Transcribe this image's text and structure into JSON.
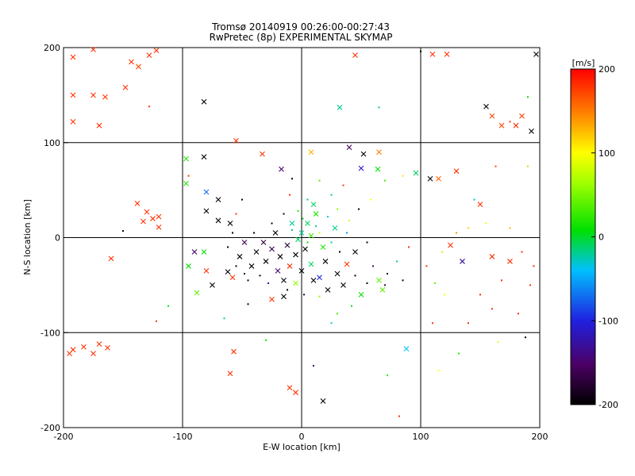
{
  "chart_data": {
    "type": "scatter",
    "title": "Tromsø 20140919 00:26:00-00:27:43",
    "subtitle": "RwPretec (8p) EXPERIMENTAL SKYMAP",
    "xlabel": "E-W location [km]",
    "ylabel": "N-S location [km]",
    "xlim": [
      -200,
      200
    ],
    "ylim": [
      -200,
      200
    ],
    "x_ticks": [
      "-200",
      "-100",
      "0",
      "100",
      "200"
    ],
    "y_ticks": [
      "-200",
      "-100",
      "0",
      "100",
      "200"
    ],
    "grid": "on",
    "grid_values": [
      -100,
      0,
      100
    ],
    "colorbar": {
      "label": "[m/s]",
      "range": [
        -200,
        200
      ],
      "ticks": [
        "200",
        "100",
        "0",
        "-100",
        "-200"
      ],
      "colormap": "rainbow (black-purple-blue-cyan-green-yellow-orange-red)"
    },
    "marker_types": [
      "x",
      "dot"
    ],
    "points": [
      {
        "x": -192,
        "y": 190,
        "v": 180,
        "m": "x"
      },
      {
        "x": -175,
        "y": 198,
        "v": 180,
        "m": "x"
      },
      {
        "x": -143,
        "y": 185,
        "v": 180,
        "m": "x"
      },
      {
        "x": -137,
        "y": 180,
        "v": 170,
        "m": "x"
      },
      {
        "x": -128,
        "y": 192,
        "v": 180,
        "m": "x"
      },
      {
        "x": -122,
        "y": 197,
        "v": 180,
        "m": "x"
      },
      {
        "x": -192,
        "y": 150,
        "v": 180,
        "m": "x"
      },
      {
        "x": -175,
        "y": 150,
        "v": 180,
        "m": "x"
      },
      {
        "x": -165,
        "y": 148,
        "v": 180,
        "m": "x"
      },
      {
        "x": -148,
        "y": 158,
        "v": 180,
        "m": "x"
      },
      {
        "x": -192,
        "y": 122,
        "v": 180,
        "m": "x"
      },
      {
        "x": -170,
        "y": 118,
        "v": 180,
        "m": "x"
      },
      {
        "x": -128,
        "y": 138,
        "v": 180,
        "m": "dot"
      },
      {
        "x": -82,
        "y": 143,
        "v": -200,
        "m": "x"
      },
      {
        "x": 45,
        "y": 192,
        "v": 180,
        "m": "x"
      },
      {
        "x": 110,
        "y": 193,
        "v": 180,
        "m": "x"
      },
      {
        "x": 122,
        "y": 193,
        "v": 180,
        "m": "x"
      },
      {
        "x": 100,
        "y": 196,
        "v": -200,
        "m": "dot"
      },
      {
        "x": 197,
        "y": 193,
        "v": -200,
        "m": "x"
      },
      {
        "x": 32,
        "y": 137,
        "v": -20,
        "m": "x"
      },
      {
        "x": 65,
        "y": 137,
        "v": -10,
        "m": "dot"
      },
      {
        "x": 155,
        "y": 138,
        "v": -200,
        "m": "x"
      },
      {
        "x": 160,
        "y": 128,
        "v": 170,
        "m": "x"
      },
      {
        "x": 168,
        "y": 118,
        "v": 170,
        "m": "x"
      },
      {
        "x": 175,
        "y": 122,
        "v": 175,
        "m": "dot"
      },
      {
        "x": 180,
        "y": 118,
        "v": 180,
        "m": "x"
      },
      {
        "x": 185,
        "y": 128,
        "v": 175,
        "m": "x"
      },
      {
        "x": 193,
        "y": 112,
        "v": -200,
        "m": "x"
      },
      {
        "x": 190,
        "y": 148,
        "v": 10,
        "m": "dot"
      },
      {
        "x": -55,
        "y": 102,
        "v": 180,
        "m": "x"
      },
      {
        "x": -82,
        "y": 85,
        "v": -200,
        "m": "x"
      },
      {
        "x": -97,
        "y": 83,
        "v": 20,
        "m": "x"
      },
      {
        "x": -33,
        "y": 88,
        "v": 180,
        "m": "x"
      },
      {
        "x": 8,
        "y": 90,
        "v": 130,
        "m": "x"
      },
      {
        "x": 40,
        "y": 95,
        "v": -160,
        "m": "x"
      },
      {
        "x": 52,
        "y": 88,
        "v": -200,
        "m": "x"
      },
      {
        "x": 65,
        "y": 90,
        "v": 150,
        "m": "x"
      },
      {
        "x": 50,
        "y": 73,
        "v": -110,
        "m": "x"
      },
      {
        "x": 64,
        "y": 72,
        "v": 10,
        "m": "x"
      },
      {
        "x": 70,
        "y": 60,
        "v": 30,
        "m": "dot"
      },
      {
        "x": 85,
        "y": 65,
        "v": 110,
        "m": "dot"
      },
      {
        "x": 96,
        "y": 68,
        "v": -10,
        "m": "x"
      },
      {
        "x": 108,
        "y": 62,
        "v": -200,
        "m": "x"
      },
      {
        "x": 115,
        "y": 62,
        "v": 160,
        "m": "x"
      },
      {
        "x": 130,
        "y": 70,
        "v": 180,
        "m": "x"
      },
      {
        "x": 163,
        "y": 75,
        "v": 170,
        "m": "dot"
      },
      {
        "x": 190,
        "y": 75,
        "v": 60,
        "m": "dot"
      },
      {
        "x": -17,
        "y": 72,
        "v": -150,
        "m": "x"
      },
      {
        "x": -8,
        "y": 62,
        "v": -200,
        "m": "dot"
      },
      {
        "x": -10,
        "y": 45,
        "v": 180,
        "m": "dot"
      },
      {
        "x": -50,
        "y": 40,
        "v": -200,
        "m": "dot"
      },
      {
        "x": -97,
        "y": 57,
        "v": 20,
        "m": "x"
      },
      {
        "x": -95,
        "y": 65,
        "v": 180,
        "m": "dot"
      },
      {
        "x": -80,
        "y": 48,
        "v": -70,
        "m": "x"
      },
      {
        "x": -70,
        "y": 40,
        "v": -200,
        "m": "x"
      },
      {
        "x": -80,
        "y": 28,
        "v": -200,
        "m": "x"
      },
      {
        "x": -70,
        "y": 18,
        "v": -200,
        "m": "x"
      },
      {
        "x": -60,
        "y": 15,
        "v": -200,
        "m": "x"
      },
      {
        "x": -55,
        "y": 25,
        "v": 180,
        "m": "dot"
      },
      {
        "x": -138,
        "y": 36,
        "v": 180,
        "m": "x"
      },
      {
        "x": -130,
        "y": 27,
        "v": 180,
        "m": "x"
      },
      {
        "x": -125,
        "y": 20,
        "v": 180,
        "m": "x"
      },
      {
        "x": -120,
        "y": 22,
        "v": 180,
        "m": "x"
      },
      {
        "x": -133,
        "y": 17,
        "v": 180,
        "m": "x"
      },
      {
        "x": -120,
        "y": 11,
        "v": 180,
        "m": "x"
      },
      {
        "x": -150,
        "y": 7,
        "v": -200,
        "m": "dot"
      },
      {
        "x": -160,
        "y": -22,
        "v": 180,
        "m": "x"
      },
      {
        "x": -90,
        "y": -15,
        "v": -150,
        "m": "x"
      },
      {
        "x": -82,
        "y": -15,
        "v": 10,
        "m": "x"
      },
      {
        "x": -95,
        "y": -30,
        "v": 10,
        "m": "x"
      },
      {
        "x": -80,
        "y": -35,
        "v": 180,
        "m": "x"
      },
      {
        "x": -75,
        "y": -50,
        "v": -200,
        "m": "x"
      },
      {
        "x": -62,
        "y": -36,
        "v": -200,
        "m": "x"
      },
      {
        "x": -58,
        "y": -42,
        "v": 180,
        "m": "x"
      },
      {
        "x": -88,
        "y": -58,
        "v": 40,
        "m": "x"
      },
      {
        "x": -65,
        "y": -85,
        "v": -20,
        "m": "dot"
      },
      {
        "x": -45,
        "y": -70,
        "v": -200,
        "m": "dot"
      },
      {
        "x": -25,
        "y": -65,
        "v": 180,
        "m": "x"
      },
      {
        "x": -15,
        "y": -62,
        "v": -200,
        "m": "x"
      },
      {
        "x": -112,
        "y": -72,
        "v": 10,
        "m": "dot"
      },
      {
        "x": -122,
        "y": -88,
        "v": 180,
        "m": "dot"
      },
      {
        "x": -195,
        "y": -122,
        "v": 180,
        "m": "x"
      },
      {
        "x": -192,
        "y": -118,
        "v": 180,
        "m": "x"
      },
      {
        "x": -183,
        "y": -115,
        "v": 180,
        "m": "x"
      },
      {
        "x": -175,
        "y": -122,
        "v": 180,
        "m": "x"
      },
      {
        "x": -170,
        "y": -112,
        "v": 180,
        "m": "x"
      },
      {
        "x": -163,
        "y": -116,
        "v": 180,
        "m": "x"
      },
      {
        "x": -57,
        "y": -120,
        "v": 180,
        "m": "x"
      },
      {
        "x": -60,
        "y": -143,
        "v": 180,
        "m": "x"
      },
      {
        "x": -30,
        "y": -108,
        "v": 10,
        "m": "dot"
      },
      {
        "x": -10,
        "y": -158,
        "v": 180,
        "m": "x"
      },
      {
        "x": -5,
        "y": -163,
        "v": 180,
        "m": "x"
      },
      {
        "x": 18,
        "y": -172,
        "v": -200,
        "m": "x"
      },
      {
        "x": 10,
        "y": -135,
        "v": -150,
        "m": "dot"
      },
      {
        "x": 88,
        "y": -117,
        "v": -40,
        "m": "x"
      },
      {
        "x": 72,
        "y": -145,
        "v": 20,
        "m": "dot"
      },
      {
        "x": 82,
        "y": -188,
        "v": 180,
        "m": "dot"
      },
      {
        "x": 115,
        "y": -140,
        "v": 100,
        "m": "dot"
      },
      {
        "x": 132,
        "y": -122,
        "v": 20,
        "m": "dot"
      },
      {
        "x": 165,
        "y": -110,
        "v": 80,
        "m": "dot"
      },
      {
        "x": 188,
        "y": -105,
        "v": -200,
        "m": "dot"
      },
      {
        "x": 125,
        "y": -8,
        "v": 180,
        "m": "x"
      },
      {
        "x": 130,
        "y": 5,
        "v": 140,
        "m": "dot"
      },
      {
        "x": 135,
        "y": -25,
        "v": -130,
        "m": "x"
      },
      {
        "x": 145,
        "y": 40,
        "v": -30,
        "m": "dot"
      },
      {
        "x": 150,
        "y": 35,
        "v": 180,
        "m": "x"
      },
      {
        "x": 160,
        "y": -20,
        "v": 180,
        "m": "x"
      },
      {
        "x": 175,
        "y": -25,
        "v": 180,
        "m": "x"
      },
      {
        "x": 192,
        "y": -50,
        "v": 180,
        "m": "dot"
      },
      {
        "x": 150,
        "y": -60,
        "v": 180,
        "m": "dot"
      },
      {
        "x": 160,
        "y": -75,
        "v": 180,
        "m": "dot"
      },
      {
        "x": 110,
        "y": -90,
        "v": 180,
        "m": "dot"
      },
      {
        "x": 140,
        "y": -90,
        "v": 180,
        "m": "dot"
      },
      {
        "x": 182,
        "y": -80,
        "v": 180,
        "m": "dot"
      },
      {
        "x": 120,
        "y": -60,
        "v": 100,
        "m": "dot"
      },
      {
        "x": 140,
        "y": 10,
        "v": 120,
        "m": "dot"
      },
      {
        "x": 175,
        "y": 10,
        "v": 130,
        "m": "dot"
      },
      {
        "x": 105,
        "y": -30,
        "v": 180,
        "m": "dot"
      },
      {
        "x": 112,
        "y": -48,
        "v": 40,
        "m": "dot"
      },
      {
        "x": 118,
        "y": -15,
        "v": 70,
        "m": "dot"
      },
      {
        "x": 168,
        "y": -45,
        "v": 180,
        "m": "dot"
      },
      {
        "x": 185,
        "y": -15,
        "v": 180,
        "m": "dot"
      },
      {
        "x": 195,
        "y": -30,
        "v": 180,
        "m": "dot"
      },
      {
        "x": 155,
        "y": 15,
        "v": 90,
        "m": "dot"
      },
      {
        "x": 45,
        "y": -15,
        "v": -200,
        "m": "x"
      },
      {
        "x": 38,
        "y": -28,
        "v": 180,
        "m": "x"
      },
      {
        "x": 65,
        "y": -45,
        "v": 40,
        "m": "x"
      },
      {
        "x": 68,
        "y": -55,
        "v": 40,
        "m": "x"
      },
      {
        "x": 35,
        "y": -50,
        "v": -200,
        "m": "x"
      },
      {
        "x": 30,
        "y": -38,
        "v": -200,
        "m": "x"
      },
      {
        "x": 22,
        "y": -55,
        "v": -200,
        "m": "x"
      },
      {
        "x": 15,
        "y": -42,
        "v": -100,
        "m": "x"
      },
      {
        "x": 50,
        "y": -60,
        "v": 10,
        "m": "x"
      },
      {
        "x": 42,
        "y": -72,
        "v": 10,
        "m": "dot"
      },
      {
        "x": 30,
        "y": -80,
        "v": 30,
        "m": "dot"
      },
      {
        "x": 25,
        "y": -90,
        "v": -30,
        "m": "dot"
      },
      {
        "x": 55,
        "y": -5,
        "v": -200,
        "m": "dot"
      },
      {
        "x": 60,
        "y": -30,
        "v": -150,
        "m": "dot"
      },
      {
        "x": 72,
        "y": -38,
        "v": -200,
        "m": "dot"
      },
      {
        "x": 80,
        "y": -25,
        "v": -10,
        "m": "dot"
      },
      {
        "x": 90,
        "y": -10,
        "v": 180,
        "m": "dot"
      },
      {
        "x": 28,
        "y": 10,
        "v": -20,
        "m": "x"
      },
      {
        "x": 22,
        "y": 22,
        "v": -30,
        "m": "dot"
      },
      {
        "x": 30,
        "y": 30,
        "v": 60,
        "m": "dot"
      },
      {
        "x": 40,
        "y": 18,
        "v": 80,
        "m": "dot"
      },
      {
        "x": 48,
        "y": 30,
        "v": -200,
        "m": "dot"
      },
      {
        "x": 58,
        "y": 40,
        "v": 100,
        "m": "dot"
      },
      {
        "x": 25,
        "y": 45,
        "v": -10,
        "m": "dot"
      },
      {
        "x": 35,
        "y": 55,
        "v": 180,
        "m": "dot"
      },
      {
        "x": 15,
        "y": 60,
        "v": 40,
        "m": "dot"
      },
      {
        "x": 10,
        "y": 35,
        "v": -10,
        "m": "x"
      },
      {
        "x": 12,
        "y": 25,
        "v": 20,
        "m": "x"
      },
      {
        "x": 5,
        "y": 15,
        "v": -10,
        "m": "x"
      },
      {
        "x": 0,
        "y": 5,
        "v": -20,
        "m": "x"
      },
      {
        "x": 8,
        "y": 2,
        "v": 30,
        "m": "x"
      },
      {
        "x": -3,
        "y": -2,
        "v": -10,
        "m": "x"
      },
      {
        "x": 3,
        "y": -12,
        "v": -200,
        "m": "x"
      },
      {
        "x": -5,
        "y": -18,
        "v": -200,
        "m": "x"
      },
      {
        "x": -12,
        "y": -8,
        "v": -180,
        "m": "x"
      },
      {
        "x": -18,
        "y": -20,
        "v": -200,
        "m": "x"
      },
      {
        "x": -25,
        "y": -12,
        "v": -170,
        "m": "x"
      },
      {
        "x": -30,
        "y": -25,
        "v": -200,
        "m": "x"
      },
      {
        "x": -38,
        "y": -15,
        "v": -200,
        "m": "x"
      },
      {
        "x": -42,
        "y": -30,
        "v": -200,
        "m": "x"
      },
      {
        "x": -20,
        "y": -35,
        "v": -150,
        "m": "x"
      },
      {
        "x": -10,
        "y": -30,
        "v": 180,
        "m": "x"
      },
      {
        "x": 0,
        "y": -35,
        "v": -200,
        "m": "x"
      },
      {
        "x": 8,
        "y": -28,
        "v": -10,
        "m": "x"
      },
      {
        "x": -15,
        "y": -45,
        "v": -200,
        "m": "x"
      },
      {
        "x": -5,
        "y": -48,
        "v": 60,
        "m": "x"
      },
      {
        "x": 10,
        "y": -45,
        "v": -200,
        "m": "x"
      },
      {
        "x": -32,
        "y": -5,
        "v": -170,
        "m": "x"
      },
      {
        "x": -48,
        "y": -5,
        "v": -160,
        "m": "x"
      },
      {
        "x": -52,
        "y": -20,
        "v": -200,
        "m": "x"
      },
      {
        "x": -22,
        "y": 5,
        "v": -200,
        "m": "x"
      },
      {
        "x": -8,
        "y": 15,
        "v": -20,
        "m": "x"
      },
      {
        "x": 18,
        "y": -10,
        "v": 20,
        "m": "x"
      },
      {
        "x": 20,
        "y": -25,
        "v": -200,
        "m": "x"
      },
      {
        "x": -35,
        "y": -40,
        "v": -200,
        "m": "dot"
      },
      {
        "x": -28,
        "y": -48,
        "v": -120,
        "m": "dot"
      },
      {
        "x": -45,
        "y": -45,
        "v": -200,
        "m": "dot"
      },
      {
        "x": -12,
        "y": -55,
        "v": -200,
        "m": "dot"
      },
      {
        "x": 2,
        "y": -60,
        "v": -170,
        "m": "dot"
      },
      {
        "x": 15,
        "y": -62,
        "v": 60,
        "m": "dot"
      },
      {
        "x": 5,
        "y": 40,
        "v": -10,
        "m": "dot"
      },
      {
        "x": -3,
        "y": 28,
        "v": 20,
        "m": "dot"
      },
      {
        "x": 15,
        "y": 5,
        "v": 80,
        "m": "dot"
      },
      {
        "x": 25,
        "y": -5,
        "v": -20,
        "m": "dot"
      },
      {
        "x": -8,
        "y": 8,
        "v": -10,
        "m": "dot"
      },
      {
        "x": 1,
        "y": 20,
        "v": 0,
        "m": "dot"
      },
      {
        "x": -40,
        "y": 5,
        "v": -200,
        "m": "dot"
      },
      {
        "x": -58,
        "y": 5,
        "v": -200,
        "m": "dot"
      },
      {
        "x": -62,
        "y": -10,
        "v": -200,
        "m": "dot"
      },
      {
        "x": -55,
        "y": -30,
        "v": -200,
        "m": "dot"
      },
      {
        "x": -48,
        "y": -38,
        "v": -180,
        "m": "dot"
      },
      {
        "x": -25,
        "y": 15,
        "v": -200,
        "m": "dot"
      },
      {
        "x": -15,
        "y": 25,
        "v": -200,
        "m": "dot"
      },
      {
        "x": 12,
        "y": 12,
        "v": -20,
        "m": "dot"
      },
      {
        "x": 5,
        "y": -5,
        "v": 10,
        "m": "dot"
      },
      {
        "x": 32,
        "y": -15,
        "v": -200,
        "m": "dot"
      },
      {
        "x": 38,
        "y": 5,
        "v": -60,
        "m": "dot"
      },
      {
        "x": 45,
        "y": -40,
        "v": -200,
        "m": "dot"
      },
      {
        "x": 55,
        "y": -48,
        "v": -200,
        "m": "dot"
      },
      {
        "x": 70,
        "y": -50,
        "v": -160,
        "m": "dot"
      },
      {
        "x": 85,
        "y": -45,
        "v": -200,
        "m": "dot"
      }
    ]
  }
}
